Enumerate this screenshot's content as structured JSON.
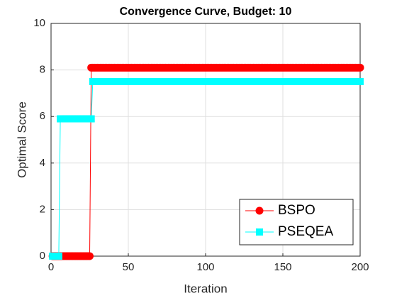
{
  "chart_data": {
    "type": "line",
    "title": "Convergence Curve, Budget: 10",
    "x_label": "Iteration",
    "y_label": "Optimal Score",
    "x": [
      1,
      2,
      3,
      4,
      5,
      6,
      7,
      8,
      9,
      10,
      11,
      12,
      13,
      14,
      15,
      16,
      17,
      18,
      19,
      20,
      21,
      22,
      23,
      24,
      25,
      26,
      27,
      28,
      29,
      30,
      31,
      32,
      33,
      34,
      35,
      36,
      37,
      38,
      39,
      40,
      41,
      42,
      43,
      44,
      45,
      46,
      47,
      48,
      49,
      50,
      51,
      52,
      53,
      54,
      55,
      56,
      57,
      58,
      59,
      60,
      61,
      62,
      63,
      64,
      65,
      66,
      67,
      68,
      69,
      70,
      71,
      72,
      73,
      74,
      75,
      76,
      77,
      78,
      79,
      80,
      81,
      82,
      83,
      84,
      85,
      86,
      87,
      88,
      89,
      90,
      91,
      92,
      93,
      94,
      95,
      96,
      97,
      98,
      99,
      100,
      101,
      102,
      103,
      104,
      105,
      106,
      107,
      108,
      109,
      110,
      111,
      112,
      113,
      114,
      115,
      116,
      117,
      118,
      119,
      120,
      121,
      122,
      123,
      124,
      125,
      126,
      127,
      128,
      129,
      130,
      131,
      132,
      133,
      134,
      135,
      136,
      137,
      138,
      139,
      140,
      141,
      142,
      143,
      144,
      145,
      146,
      147,
      148,
      149,
      150,
      151,
      152,
      153,
      154,
      155,
      156,
      157,
      158,
      159,
      160,
      161,
      162,
      163,
      164,
      165,
      166,
      167,
      168,
      169,
      170,
      171,
      172,
      173,
      174,
      175,
      176,
      177,
      178,
      179,
      180,
      181,
      182,
      183,
      184,
      185,
      186,
      187,
      188,
      189,
      190,
      191,
      192,
      193,
      194,
      195,
      196,
      197,
      198,
      199,
      200
    ],
    "series": [
      {
        "name": "BSPO",
        "color": "#ff0000",
        "marker": "circle",
        "values": [
          0,
          0,
          0,
          0,
          0,
          0,
          0,
          0,
          0,
          0,
          0,
          0,
          0,
          0,
          0,
          0,
          0,
          0,
          0,
          0,
          0,
          0,
          0,
          0,
          0,
          8.1,
          8.1,
          8.1,
          8.1,
          8.1,
          8.1,
          8.1,
          8.1,
          8.1,
          8.1,
          8.1,
          8.1,
          8.1,
          8.1,
          8.1,
          8.1,
          8.1,
          8.1,
          8.1,
          8.1,
          8.1,
          8.1,
          8.1,
          8.1,
          8.1,
          8.1,
          8.1,
          8.1,
          8.1,
          8.1,
          8.1,
          8.1,
          8.1,
          8.1,
          8.1,
          8.1,
          8.1,
          8.1,
          8.1,
          8.1,
          8.1,
          8.1,
          8.1,
          8.1,
          8.1,
          8.1,
          8.1,
          8.1,
          8.1,
          8.1,
          8.1,
          8.1,
          8.1,
          8.1,
          8.1,
          8.1,
          8.1,
          8.1,
          8.1,
          8.1,
          8.1,
          8.1,
          8.1,
          8.1,
          8.1,
          8.1,
          8.1,
          8.1,
          8.1,
          8.1,
          8.1,
          8.1,
          8.1,
          8.1,
          8.1,
          8.1,
          8.1,
          8.1,
          8.1,
          8.1,
          8.1,
          8.1,
          8.1,
          8.1,
          8.1,
          8.1,
          8.1,
          8.1,
          8.1,
          8.1,
          8.1,
          8.1,
          8.1,
          8.1,
          8.1,
          8.1,
          8.1,
          8.1,
          8.1,
          8.1,
          8.1,
          8.1,
          8.1,
          8.1,
          8.1,
          8.1,
          8.1,
          8.1,
          8.1,
          8.1,
          8.1,
          8.1,
          8.1,
          8.1,
          8.1,
          8.1,
          8.1,
          8.1,
          8.1,
          8.1,
          8.1,
          8.1,
          8.1,
          8.1,
          8.1,
          8.1,
          8.1,
          8.1,
          8.1,
          8.1,
          8.1,
          8.1,
          8.1,
          8.1,
          8.1,
          8.1,
          8.1,
          8.1,
          8.1,
          8.1,
          8.1,
          8.1,
          8.1,
          8.1,
          8.1,
          8.1,
          8.1,
          8.1,
          8.1,
          8.1,
          8.1,
          8.1,
          8.1,
          8.1,
          8.1,
          8.1,
          8.1,
          8.1,
          8.1,
          8.1,
          8.1,
          8.1,
          8.1,
          8.1,
          8.1,
          8.1,
          8.1,
          8.1,
          8.1,
          8.1,
          8.1,
          8.1,
          8.1,
          8.1,
          8.1
        ]
      },
      {
        "name": "PSEQEA",
        "color": "#00ffff",
        "marker": "square",
        "values": [
          0,
          0,
          0,
          0,
          0,
          5.9,
          5.9,
          5.9,
          5.9,
          5.9,
          5.9,
          5.9,
          5.9,
          5.9,
          5.9,
          5.9,
          5.9,
          5.9,
          5.9,
          5.9,
          5.9,
          5.9,
          5.9,
          5.9,
          5.9,
          5.9,
          7.5,
          7.5,
          7.5,
          7.5,
          7.5,
          7.5,
          7.5,
          7.5,
          7.5,
          7.5,
          7.5,
          7.5,
          7.5,
          7.5,
          7.5,
          7.5,
          7.5,
          7.5,
          7.5,
          7.5,
          7.5,
          7.5,
          7.5,
          7.5,
          7.5,
          7.5,
          7.5,
          7.5,
          7.5,
          7.5,
          7.5,
          7.5,
          7.5,
          7.5,
          7.5,
          7.5,
          7.5,
          7.5,
          7.5,
          7.5,
          7.5,
          7.5,
          7.5,
          7.5,
          7.5,
          7.5,
          7.5,
          7.5,
          7.5,
          7.5,
          7.5,
          7.5,
          7.5,
          7.5,
          7.5,
          7.5,
          7.5,
          7.5,
          7.5,
          7.5,
          7.5,
          7.5,
          7.5,
          7.5,
          7.5,
          7.5,
          7.5,
          7.5,
          7.5,
          7.5,
          7.5,
          7.5,
          7.5,
          7.5,
          7.5,
          7.5,
          7.5,
          7.5,
          7.5,
          7.5,
          7.5,
          7.5,
          7.5,
          7.5,
          7.5,
          7.5,
          7.5,
          7.5,
          7.5,
          7.5,
          7.5,
          7.5,
          7.5,
          7.5,
          7.5,
          7.5,
          7.5,
          7.5,
          7.5,
          7.5,
          7.5,
          7.5,
          7.5,
          7.5,
          7.5,
          7.5,
          7.5,
          7.5,
          7.5,
          7.5,
          7.5,
          7.5,
          7.5,
          7.5,
          7.5,
          7.5,
          7.5,
          7.5,
          7.5,
          7.5,
          7.5,
          7.5,
          7.5,
          7.5,
          7.5,
          7.5,
          7.5,
          7.5,
          7.5,
          7.5,
          7.5,
          7.5,
          7.5,
          7.5,
          7.5,
          7.5,
          7.5,
          7.5,
          7.5,
          7.5,
          7.5,
          7.5,
          7.5,
          7.5,
          7.5,
          7.5,
          7.5,
          7.5,
          7.5,
          7.5,
          7.5,
          7.5,
          7.5,
          7.5,
          7.5,
          7.5,
          7.5,
          7.5,
          7.5,
          7.5,
          7.5,
          7.5,
          7.5,
          7.5,
          7.5,
          7.5,
          7.5,
          7.5,
          7.5,
          7.5,
          7.5,
          7.5,
          7.5,
          7.5
        ]
      }
    ],
    "xlim": [
      0,
      200
    ],
    "xticks": [
      0,
      50,
      100,
      150,
      200
    ],
    "ylim": [
      0,
      10
    ],
    "yticks": [
      0,
      2,
      4,
      6,
      8,
      10
    ],
    "grid": true,
    "legend": "lower right"
  }
}
